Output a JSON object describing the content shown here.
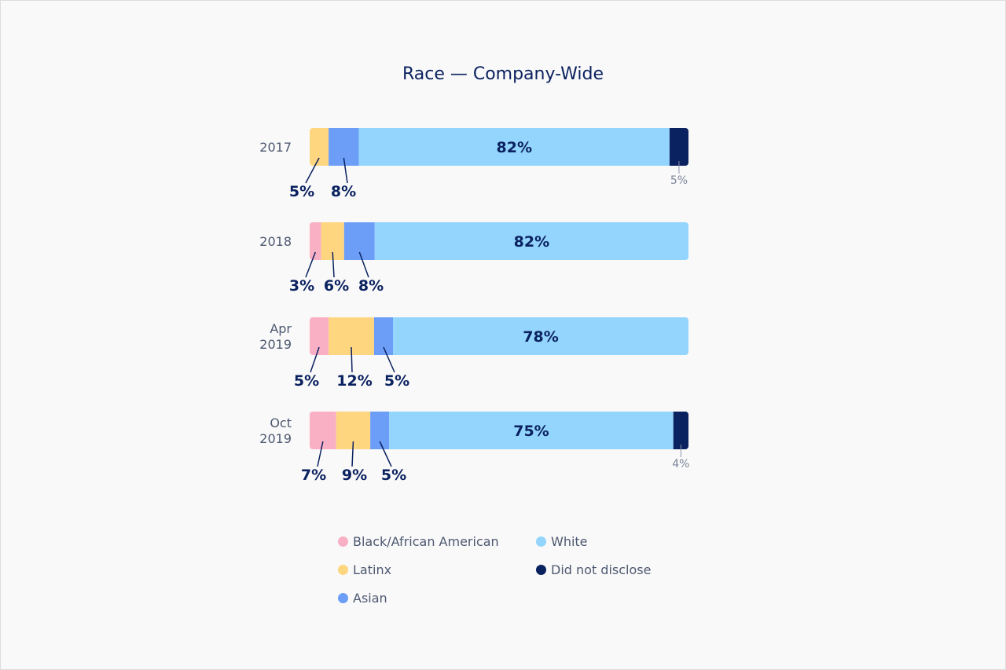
{
  "chart_data": {
    "type": "bar",
    "orientation": "horizontal",
    "stacked": true,
    "title": "Race — Company-Wide",
    "categories": [
      "2017",
      "2018",
      "Apr 2019",
      "Oct 2019"
    ],
    "series": [
      {
        "name": "Black/African American",
        "color": "#f9b0c4",
        "values": [
          0,
          3,
          5,
          7
        ]
      },
      {
        "name": "Latinx",
        "color": "#ffd680",
        "values": [
          5,
          6,
          12,
          9
        ]
      },
      {
        "name": "Asian",
        "color": "#6c9ef8",
        "values": [
          8,
          8,
          5,
          5
        ]
      },
      {
        "name": "White",
        "color": "#93d5fd",
        "values": [
          82,
          82,
          78,
          75
        ]
      },
      {
        "name": "Did not disclose",
        "color": "#0b2260",
        "values": [
          5,
          0,
          0,
          4
        ]
      }
    ],
    "value_suffix": "%",
    "legend_position": "bottom",
    "grid": false
  }
}
